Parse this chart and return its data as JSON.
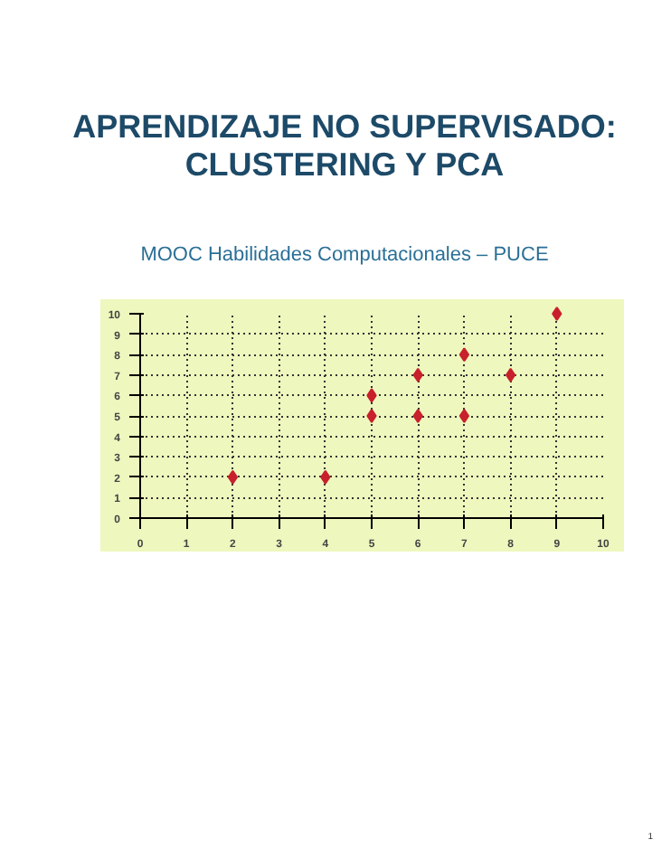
{
  "chart_data": {
    "type": "scatter",
    "title": "APRENDIZAJE NO SUPERVISADO: CLUSTERING Y PCA",
    "subtitle": "MOOC Habilidades Computacionales – PUCE",
    "x": [
      2,
      4,
      5,
      5,
      6,
      6,
      7,
      7,
      8,
      9
    ],
    "series": [
      {
        "color": "#c8202c",
        "values": [
          2,
          2,
          6,
          5,
          7,
          5,
          8,
          5,
          7,
          10
        ]
      }
    ],
    "xlim": [
      0,
      10
    ],
    "ylim": [
      0,
      10
    ],
    "xticks": [
      0,
      1,
      2,
      3,
      4,
      5,
      6,
      7,
      8,
      9,
      10
    ],
    "yticks": [
      0,
      1,
      2,
      3,
      4,
      5,
      6,
      7,
      8,
      9,
      10
    ],
    "grid": true,
    "marker": "diamond",
    "annotations": [
      "1"
    ]
  }
}
